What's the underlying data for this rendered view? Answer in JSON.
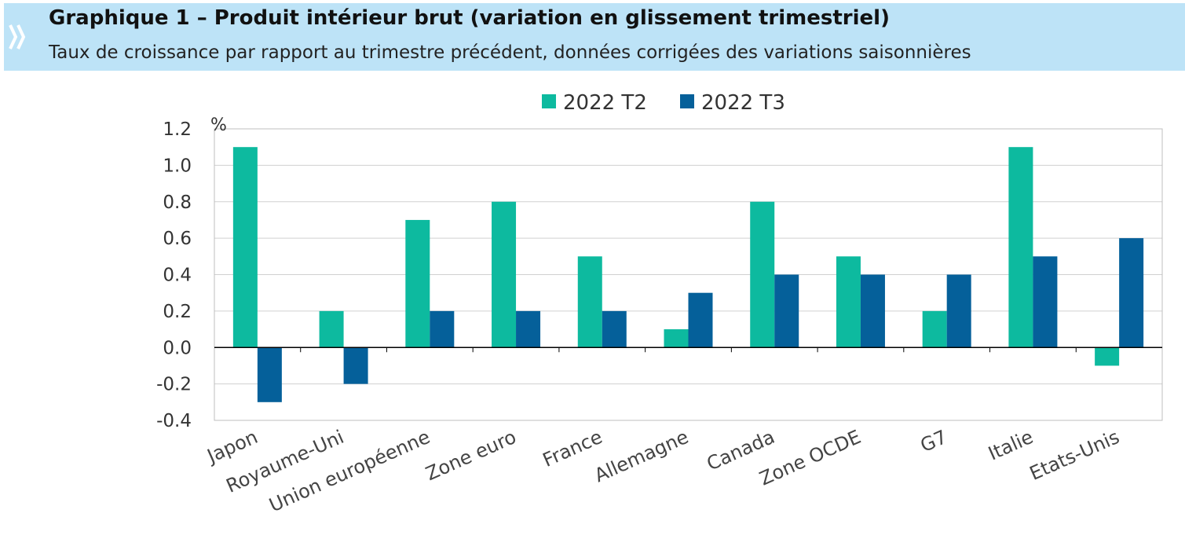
{
  "header": {
    "title": "Graphique 1 – Produit intérieur brut (variation en glissement trimestriel)",
    "subtitle": "Taux de croissance par rapport au trimestre précédent, données corrigées des variations saisonnières",
    "banner_color": "#bde3f7",
    "icon": "double-chevron-right-icon"
  },
  "chart_data": {
    "type": "bar",
    "unit_label": "%",
    "categories": [
      "Japon",
      "Royaume-Uni",
      "Union européenne",
      "Zone euro",
      "France",
      "Allemagne",
      "Canada",
      "Zone OCDE",
      "G7",
      "Italie",
      "Etats-Unis"
    ],
    "series": [
      {
        "name": "2022 T2",
        "color": "#0dba9f",
        "values": [
          1.1,
          0.2,
          0.7,
          0.8,
          0.5,
          0.1,
          0.8,
          0.5,
          0.2,
          1.1,
          -0.1
        ]
      },
      {
        "name": "2022 T3",
        "color": "#05609a",
        "values": [
          -0.3,
          -0.2,
          0.2,
          0.2,
          0.2,
          0.3,
          0.4,
          0.4,
          0.4,
          0.5,
          0.6
        ]
      }
    ],
    "ylim": [
      -0.4,
      1.2
    ],
    "yticks": [
      "1.2",
      "1.0",
      "0.8",
      "0.6",
      "0.4",
      "0.2",
      "0.0",
      "-0.2",
      "-0.4"
    ],
    "grid": true,
    "legend_position": "top-center"
  }
}
